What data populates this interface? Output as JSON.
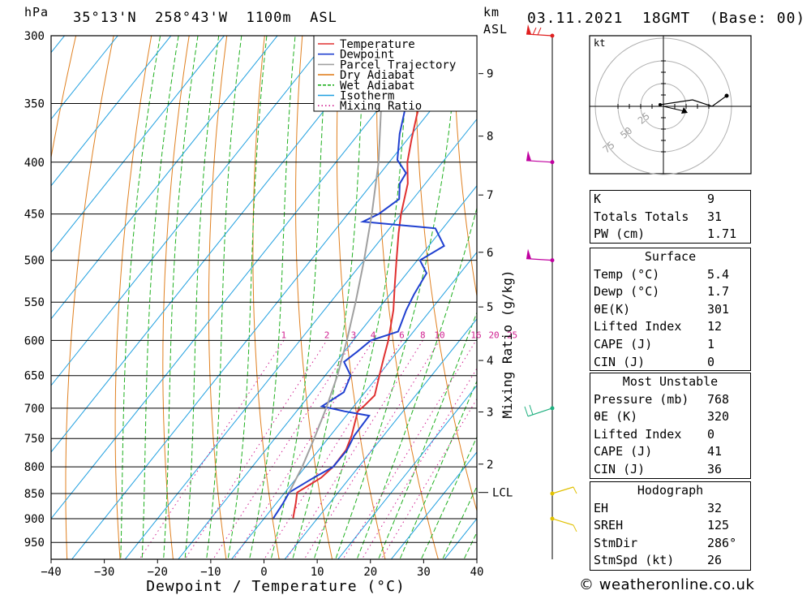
{
  "header": {
    "p_unit": "hPa",
    "location": "35°13'N  258°43'W  1100m  ASL",
    "km_label": "km",
    "asl_label": "ASL",
    "datetime": "03.11.2021  18GMT  (Base: 00)"
  },
  "legend": [
    {
      "label": "Temperature",
      "color": "#e03030",
      "style": "solid"
    },
    {
      "label": "Dewpoint",
      "color": "#2040d0",
      "style": "solid"
    },
    {
      "label": "Parcel Trajectory",
      "color": "#a0a0a0",
      "style": "solid"
    },
    {
      "label": "Dry Adiabat",
      "color": "#e08020",
      "style": "solid"
    },
    {
      "label": "Wet Adiabat",
      "color": "#20b020",
      "style": "dashed"
    },
    {
      "label": "Isotherm",
      "color": "#20a0e0",
      "style": "solid"
    },
    {
      "label": "Mixing Ratio",
      "color": "#d02090",
      "style": "dotted"
    }
  ],
  "chart_data": {
    "type": "line",
    "subtype": "skew-t",
    "xlabel": "Dewpoint / Temperature (°C)",
    "ylabel": "hPa",
    "y2label": "Mixing Ratio (g/kg)",
    "xlim": [
      -40,
      40
    ],
    "ylim": [
      990,
      300
    ],
    "y_scale": "log",
    "grid": true,
    "legend_position": "top-right",
    "x_ticks": [
      "−40",
      "−30",
      "−20",
      "−10",
      "0",
      "10",
      "20",
      "30",
      "40"
    ],
    "x_tick_values": [
      -40,
      -30,
      -20,
      -10,
      0,
      10,
      20,
      30,
      40
    ],
    "p_ticks": [
      300,
      350,
      400,
      450,
      500,
      550,
      600,
      650,
      700,
      750,
      800,
      850,
      900,
      950
    ],
    "mixing_ratio_labels": [
      "1",
      "2",
      "3",
      "4",
      "6",
      "8",
      "10",
      "16",
      "20",
      "25"
    ],
    "mixing_ratio_values": [
      1,
      2,
      3,
      4,
      6,
      8,
      10,
      16,
      20,
      25
    ],
    "km_ticks": [
      {
        "label": "2",
        "p": 795
      },
      {
        "label": "3",
        "p": 706
      },
      {
        "label": "4",
        "p": 628
      },
      {
        "label": "5",
        "p": 556
      },
      {
        "label": "6",
        "p": 491
      },
      {
        "label": "7",
        "p": 431
      },
      {
        "label": "8",
        "p": 377
      },
      {
        "label": "9",
        "p": 327
      }
    ],
    "lcl": {
      "label": "LCL",
      "p": 848
    },
    "series": [
      {
        "name": "Temperature",
        "color": "#e03030",
        "points": [
          [
            899,
            5.4
          ],
          [
            868,
            3.6
          ],
          [
            848,
            2.3
          ],
          [
            820,
            4.6
          ],
          [
            800,
            5.2
          ],
          [
            770,
            5.1
          ],
          [
            745,
            4.0
          ],
          [
            705,
            1.5
          ],
          [
            696,
            1.9
          ],
          [
            680,
            2.3
          ],
          [
            650,
            0.2
          ],
          [
            625,
            -1.6
          ],
          [
            600,
            -3.4
          ],
          [
            560,
            -7.0
          ],
          [
            530,
            -10.4
          ],
          [
            500,
            -13.9
          ],
          [
            470,
            -17.6
          ],
          [
            450,
            -20.0
          ],
          [
            420,
            -23.3
          ],
          [
            400,
            -26.6
          ],
          [
            380,
            -29.2
          ],
          [
            360,
            -31.8
          ],
          [
            330,
            -35.7
          ],
          [
            300,
            -40.0
          ]
        ]
      },
      {
        "name": "Dewpoint",
        "color": "#2040d0",
        "points": [
          [
            899,
            1.7
          ],
          [
            870,
            1.3
          ],
          [
            848,
            0.8
          ],
          [
            820,
            3.2
          ],
          [
            800,
            5.2
          ],
          [
            770,
            5.3
          ],
          [
            745,
            4.5
          ],
          [
            712,
            4.3
          ],
          [
            705,
            -1.0
          ],
          [
            697,
            -6.0
          ],
          [
            675,
            -4.0
          ],
          [
            650,
            -5.2
          ],
          [
            630,
            -8.5
          ],
          [
            615,
            -7.5
          ],
          [
            600,
            -6.7
          ],
          [
            588,
            -2.9
          ],
          [
            560,
            -4.6
          ],
          [
            540,
            -5.5
          ],
          [
            515,
            -6.3
          ],
          [
            500,
            -9.5
          ],
          [
            484,
            -7.1
          ],
          [
            465,
            -11.4
          ],
          [
            458,
            -26.0
          ],
          [
            450,
            -24.2
          ],
          [
            435,
            -22.6
          ],
          [
            420,
            -24.8
          ],
          [
            410,
            -25.2
          ],
          [
            398,
            -28.8
          ],
          [
            375,
            -32.3
          ],
          [
            350,
            -35.6
          ],
          [
            320,
            -37.6
          ],
          [
            300,
            -40.0
          ]
        ]
      },
      {
        "name": "Parcel Trajectory",
        "color": "#a0a0a0",
        "points": [
          [
            848,
            0.8
          ],
          [
            800,
            -0.6
          ],
          [
            750,
            -2.6
          ],
          [
            700,
            -4.9
          ],
          [
            650,
            -7.7
          ],
          [
            600,
            -11.2
          ],
          [
            550,
            -15.3
          ],
          [
            500,
            -20.0
          ],
          [
            450,
            -25.5
          ],
          [
            400,
            -32.0
          ],
          [
            350,
            -40.3
          ],
          [
            305,
            -49.0
          ]
        ]
      }
    ],
    "wind_barbs": [
      {
        "p": 300,
        "color": "#e02020",
        "kind": "pennant"
      },
      {
        "p": 400,
        "color": "#c000a0",
        "kind": "pennant"
      },
      {
        "p": 500,
        "color": "#c000a0",
        "kind": "pennant"
      },
      {
        "p": 700,
        "color": "#20b080",
        "kind": "barb"
      },
      {
        "p": 850,
        "color": "#e0c000",
        "kind": "barb"
      },
      {
        "p": 900,
        "color": "#e0c000",
        "kind": "barb"
      }
    ]
  },
  "hodograph": {
    "unit": "kt",
    "ring_labels": [
      "25",
      "50",
      "75"
    ]
  },
  "indices": {
    "general": [
      {
        "k": "K",
        "v": "9"
      },
      {
        "k": "Totals Totals",
        "v": "31"
      },
      {
        "k": "PW (cm)",
        "v": "1.71"
      }
    ],
    "surface": {
      "title": "Surface",
      "rows": [
        {
          "k": "Temp (°C)",
          "v": "5.4"
        },
        {
          "k": "Dewp (°C)",
          "v": "1.7"
        },
        {
          "k": "θE(K)",
          "v": "301"
        },
        {
          "k": "Lifted Index",
          "v": "12"
        },
        {
          "k": "CAPE (J)",
          "v": "1"
        },
        {
          "k": "CIN (J)",
          "v": "0"
        }
      ]
    },
    "most_unstable": {
      "title": "Most Unstable",
      "rows": [
        {
          "k": "Pressure (mb)",
          "v": "768"
        },
        {
          "k": "θE (K)",
          "v": "320"
        },
        {
          "k": "Lifted Index",
          "v": "0"
        },
        {
          "k": "CAPE (J)",
          "v": "41"
        },
        {
          "k": "CIN (J)",
          "v": "36"
        }
      ]
    },
    "hodograph": {
      "title": "Hodograph",
      "rows": [
        {
          "k": "EH",
          "v": "32"
        },
        {
          "k": "SREH",
          "v": "125"
        },
        {
          "k": "StmDir",
          "v": "286°"
        },
        {
          "k": "StmSpd (kt)",
          "v": "26"
        }
      ]
    }
  },
  "footer": {
    "copyright": "© weatheronline.co.uk"
  }
}
